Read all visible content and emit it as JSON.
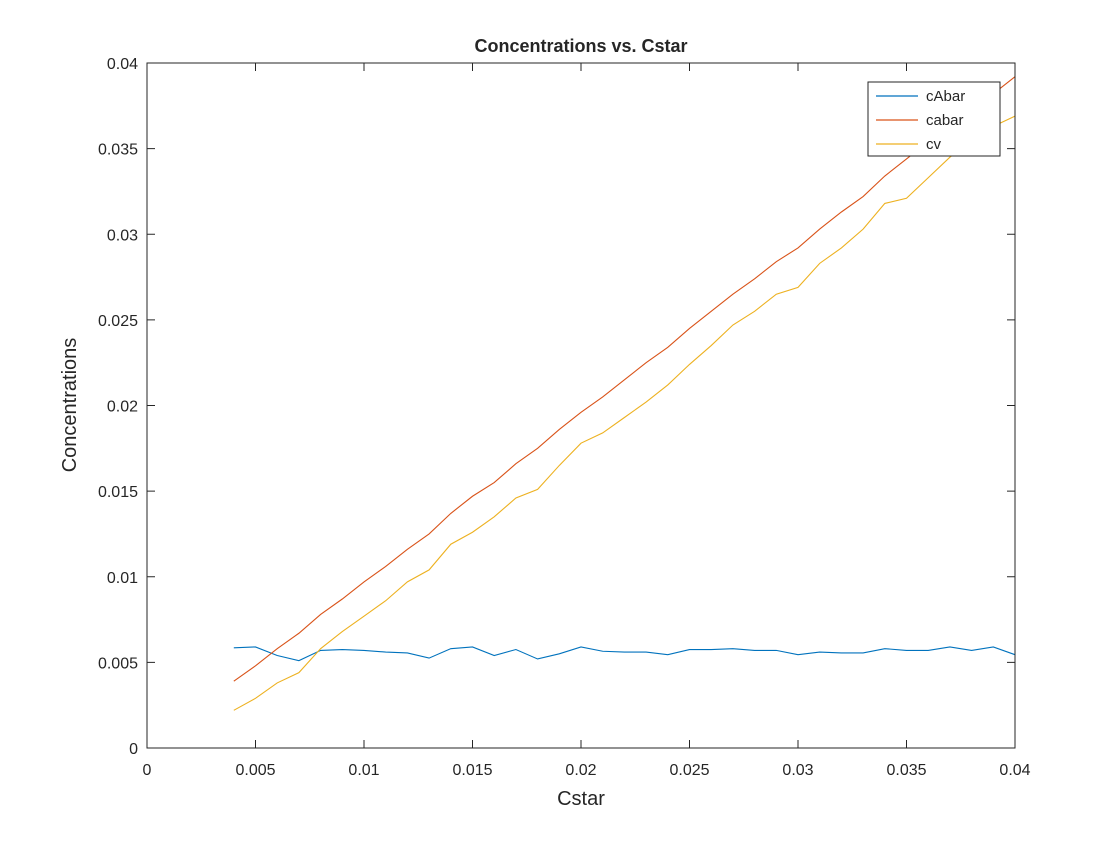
{
  "chart_data": {
    "type": "line",
    "title": "Concentrations vs. Cstar",
    "xlabel": "Cstar",
    "ylabel": "Concentrations",
    "xlim": [
      0,
      0.04
    ],
    "ylim": [
      0,
      0.04
    ],
    "xticks": [
      "0",
      "0.005",
      "0.01",
      "0.015",
      "0.02",
      "0.025",
      "0.03",
      "0.035",
      "0.04"
    ],
    "yticks": [
      "0",
      "0.005",
      "0.01",
      "0.015",
      "0.02",
      "0.025",
      "0.03",
      "0.035",
      "0.04"
    ],
    "grid": false,
    "legend_position": "top-right",
    "x": [
      0.004,
      0.005,
      0.006,
      0.007,
      0.008,
      0.009,
      0.01,
      0.011,
      0.012,
      0.013,
      0.014,
      0.015,
      0.016,
      0.017,
      0.018,
      0.019,
      0.02,
      0.021,
      0.022,
      0.023,
      0.024,
      0.025,
      0.026,
      0.027,
      0.028,
      0.029,
      0.03,
      0.031,
      0.032,
      0.033,
      0.034,
      0.035,
      0.036,
      0.037,
      0.038,
      0.039,
      0.04
    ],
    "series": [
      {
        "name": "cAbar",
        "color": "#0072BD",
        "values": [
          0.00585,
          0.0059,
          0.0054,
          0.0051,
          0.0057,
          0.00575,
          0.0057,
          0.0056,
          0.00555,
          0.00525,
          0.0058,
          0.0059,
          0.0054,
          0.00575,
          0.0052,
          0.0055,
          0.0059,
          0.00565,
          0.0056,
          0.0056,
          0.00545,
          0.00575,
          0.00575,
          0.0058,
          0.0057,
          0.0057,
          0.00545,
          0.0056,
          0.00555,
          0.00555,
          0.0058,
          0.0057,
          0.0057,
          0.0059,
          0.0057,
          0.0059,
          0.00545
        ]
      },
      {
        "name": "cabar",
        "color": "#D95319",
        "values": [
          0.0039,
          0.0048,
          0.0058,
          0.0067,
          0.0078,
          0.0087,
          0.0097,
          0.0106,
          0.0116,
          0.0125,
          0.0137,
          0.0147,
          0.0155,
          0.0166,
          0.0175,
          0.0186,
          0.0196,
          0.0205,
          0.0215,
          0.0225,
          0.0234,
          0.0245,
          0.0255,
          0.0265,
          0.0274,
          0.0284,
          0.0292,
          0.0303,
          0.0313,
          0.0322,
          0.0334,
          0.0344,
          0.0354,
          0.0362,
          0.0372,
          0.0382,
          0.0392
        ]
      },
      {
        "name": "cv",
        "color": "#EDB120",
        "values": [
          0.0022,
          0.0029,
          0.0038,
          0.0044,
          0.0058,
          0.0068,
          0.0077,
          0.0086,
          0.0097,
          0.0104,
          0.0119,
          0.0126,
          0.0135,
          0.0146,
          0.0151,
          0.0165,
          0.0178,
          0.0184,
          0.0193,
          0.0202,
          0.0212,
          0.0224,
          0.0235,
          0.0247,
          0.0255,
          0.0265,
          0.0269,
          0.0283,
          0.0292,
          0.0303,
          0.0318,
          0.0321,
          0.0333,
          0.0345,
          0.0355,
          0.0363,
          0.0369
        ]
      }
    ]
  }
}
